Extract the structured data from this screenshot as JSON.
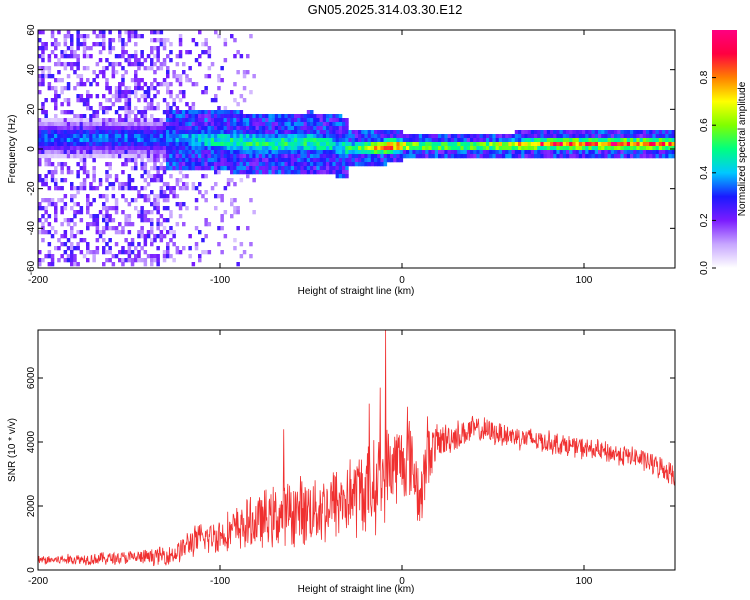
{
  "title": "GN05.2025.314.03.30.E12",
  "colors": {
    "snr_line": "#f03030",
    "band_low": "#a855f7",
    "band_mid": "#22d3a0",
    "band_high": "#e11d48",
    "frame": "#000000"
  },
  "chart_data": [
    {
      "type": "heatmap",
      "title": "",
      "xlabel": "Height of straight line (km)",
      "ylabel": "Frequency (Hz)",
      "xlim": [
        -200,
        150
      ],
      "ylim": [
        -60,
        60
      ],
      "x_ticks": [
        -200,
        -100,
        0,
        100
      ],
      "y_ticks": [
        -60,
        -40,
        -20,
        0,
        20,
        40,
        60
      ],
      "x_tick_labels": [
        "-200",
        "-100",
        "0",
        "100"
      ],
      "y_tick_labels": [
        "-60",
        "-40",
        "-20",
        "0",
        "20",
        "40",
        "60"
      ],
      "colorbar": {
        "label": "Normalized spectral amplitude",
        "range": [
          0,
          1
        ],
        "ticks": [
          0.0,
          0.2,
          0.4,
          0.6,
          0.8
        ],
        "tick_labels": [
          "0.0",
          "0.2",
          "0.4",
          "0.6",
          "0.8"
        ],
        "colormap": [
          "#ffffff",
          "#c7a6ff",
          "#7b1cff",
          "#1a1aff",
          "#00c8ff",
          "#00ff80",
          "#80ff00",
          "#ffff00",
          "#ff8000",
          "#ff0040",
          "#ff0080"
        ]
      },
      "band_centerline": {
        "x": [
          -130,
          -110,
          -90,
          -70,
          -50,
          -35,
          -25,
          -15,
          -5,
          10,
          40,
          80,
          120,
          150
        ],
        "y": [
          5,
          4,
          3,
          2,
          3,
          1,
          0,
          0,
          1,
          1,
          1,
          2,
          2,
          2
        ]
      },
      "band_peak_amplitude": {
        "x": [
          -130,
          -110,
          -90,
          -70,
          -50,
          -35,
          -25,
          -15,
          -5,
          10,
          40,
          80,
          120,
          150
        ],
        "y": [
          0.35,
          0.45,
          0.5,
          0.5,
          0.5,
          0.45,
          0.55,
          0.8,
          0.85,
          0.6,
          0.6,
          0.85,
          0.9,
          0.85
        ]
      },
      "noise_region_x": [
        -200,
        -80
      ]
    },
    {
      "type": "line",
      "title": "",
      "xlabel": "Height of straight line (km)",
      "ylabel": "SNR (10 * v/v)",
      "xlim": [
        -200,
        150
      ],
      "ylim": [
        0,
        7500
      ],
      "x_ticks": [
        -200,
        -100,
        0,
        100
      ],
      "y_ticks": [
        0,
        2000,
        4000,
        6000
      ],
      "x_tick_labels": [
        "-200",
        "-100",
        "0",
        "100"
      ],
      "y_tick_labels": [
        "0",
        "2000",
        "4000",
        "6000"
      ],
      "series": [
        {
          "name": "SNR",
          "envelope_x": [
            -200,
            -170,
            -140,
            -125,
            -115,
            -100,
            -80,
            -60,
            -40,
            -25,
            -15,
            -10,
            -5,
            5,
            10,
            15,
            20,
            30,
            40,
            50,
            70,
            90,
            110,
            130,
            150
          ],
          "envelope_center": [
            300,
            350,
            400,
            500,
            900,
            1100,
            1500,
            1800,
            2000,
            2400,
            2600,
            3000,
            3300,
            3500,
            2200,
            3700,
            4000,
            4200,
            4400,
            4300,
            4100,
            3900,
            3700,
            3500,
            3000
          ],
          "envelope_amplitude": [
            150,
            200,
            250,
            350,
            500,
            600,
            900,
            1100,
            1200,
            1400,
            1500,
            1500,
            1400,
            1300,
            1200,
            900,
            600,
            500,
            450,
            400,
            400,
            350,
            350,
            350,
            400
          ],
          "spikes": [
            {
              "x": -9,
              "y": 7500
            },
            {
              "x": -12,
              "y": 5700
            },
            {
              "x": -18,
              "y": 5200
            },
            {
              "x": -65,
              "y": 4400
            },
            {
              "x": 14,
              "y": 4800
            },
            {
              "x": 3,
              "y": 5100
            }
          ]
        }
      ]
    }
  ]
}
